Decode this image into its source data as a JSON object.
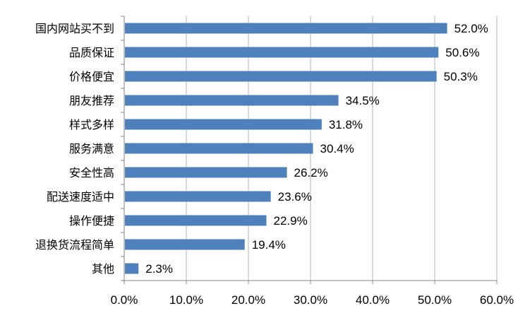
{
  "chart_data": {
    "type": "bar",
    "orientation": "horizontal",
    "categories": [
      "国内网站买不到",
      "品质保证",
      "价格便宜",
      "朋友推荐",
      "样式多样",
      "服务满意",
      "安全性高",
      "配送速度适中",
      "操作便捷",
      "退换货流程简单",
      "其他"
    ],
    "values": [
      52.0,
      50.6,
      50.3,
      34.5,
      31.8,
      30.4,
      26.2,
      23.6,
      22.9,
      19.4,
      2.3
    ],
    "value_labels": [
      "52.0%",
      "50.6%",
      "50.3%",
      "34.5%",
      "31.8%",
      "30.4%",
      "26.2%",
      "23.6%",
      "22.9%",
      "19.4%",
      "2.3%"
    ],
    "x_ticks": [
      "0.0%",
      "10.0%",
      "20.0%",
      "30.0%",
      "40.0%",
      "50.0%",
      "60.0%"
    ],
    "xlim": [
      0,
      60
    ],
    "grid": "vertical",
    "bar_color": "#4F81BD",
    "grid_color": "#B3B3B3"
  }
}
